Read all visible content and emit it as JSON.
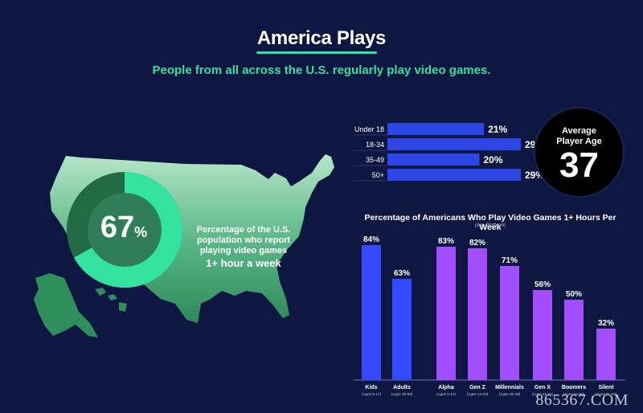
{
  "header": {
    "title": "America Plays",
    "subtitle": "People from all across the U.S. regularly play video games."
  },
  "map_stat": {
    "value": "67",
    "unit": "%",
    "fraction": 0.67,
    "description": "Percentage of the U.S. population who report playing video games",
    "highlight": "1+ hour a week"
  },
  "age_breakdown": [
    {
      "label": "Under 18",
      "value": 21,
      "display": "21%"
    },
    {
      "label": "18-34",
      "value": 29,
      "display": "29%"
    },
    {
      "label": "35-49",
      "value": 20,
      "display": "20%"
    },
    {
      "label": "50+",
      "value": 29,
      "display": "29%"
    }
  ],
  "average_age": {
    "label": "Average Player Age",
    "value": "37"
  },
  "chart_data": {
    "type": "bar",
    "title": "Percentage of Americans Who Play Video Games 1+ Hours Per Week",
    "subtitle": "(Any Platform)",
    "categories": [
      "Kids",
      "Adults",
      "Alpha",
      "Gen Z",
      "Millennials",
      "Gen X",
      "Boomers",
      "Silent"
    ],
    "category_ages": [
      "(Ages 5-17)",
      "(Ages 18-90)",
      "(Ages 5-13)",
      "(Ages 14-29)",
      "(Ages 30-45)",
      "(Ages 46-61)",
      "(Ages 62-80)",
      "(Ages 81-90)"
    ],
    "values": [
      84,
      63,
      83,
      82,
      71,
      56,
      50,
      32
    ],
    "value_labels": [
      "84%",
      "63%",
      "83%",
      "82%",
      "71%",
      "56%",
      "50%",
      "32%"
    ],
    "bar_colors": [
      "#3549ff",
      "#3549ff",
      "#a24dff",
      "#a24dff",
      "#a24dff",
      "#a24dff",
      "#a24dff",
      "#a24dff"
    ],
    "ylim": [
      0,
      100
    ],
    "grid": false,
    "xlabel": "",
    "ylabel": ""
  },
  "watermark": "865367.COM",
  "colors": {
    "background": "#0d1741",
    "accent_green": "#37dfa0",
    "bar_blue": "#3549ff",
    "bar_purple": "#a24dff"
  }
}
